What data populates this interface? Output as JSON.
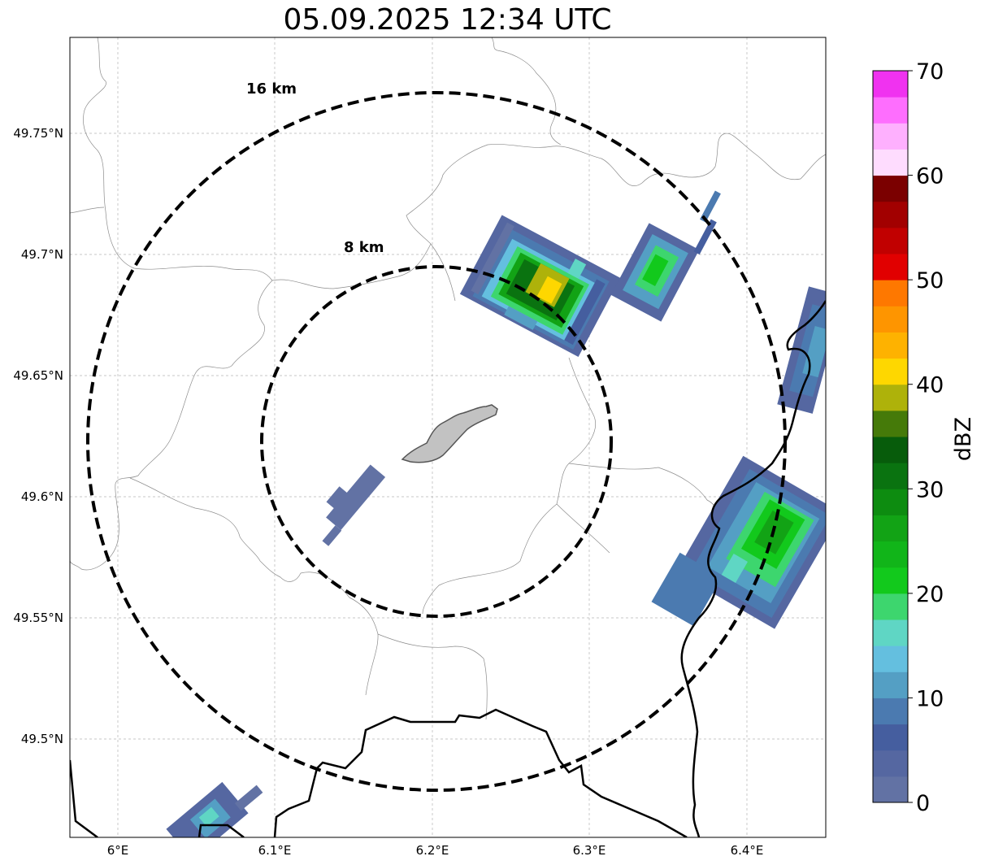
{
  "title": "05.09.2025 12:34 UTC",
  "map": {
    "x_ticks": [
      "6°E",
      "6.1°E",
      "6.2°E",
      "6.3°E",
      "6.4°E"
    ],
    "y_ticks": [
      "49.75°N",
      "49.7°N",
      "49.65°N",
      "49.6°N",
      "49.55°N",
      "49.5°N"
    ],
    "range_rings": [
      {
        "label": "16 km",
        "radius_km": 16
      },
      {
        "label": "8 km",
        "radius_km": 8
      }
    ],
    "gridlines": true
  },
  "colorbar": {
    "label": "dBZ",
    "ticks": [
      "0",
      "10",
      "20",
      "30",
      "40",
      "50",
      "60",
      "70"
    ],
    "range": [
      0,
      70
    ],
    "step": 2.5,
    "colors": [
      "#6272a4",
      "#5567a1",
      "#455e9f",
      "#4b7ab0",
      "#549fc4",
      "#64bfdf",
      "#5fd6c4",
      "#3dd66e",
      "#12c91c",
      "#11b519",
      "#12a315",
      "#0d8c10",
      "#0a7310",
      "#075c0b",
      "#457a09",
      "#aeb20a",
      "#fed700",
      "#feb200",
      "#fe9500",
      "#fe7800",
      "#e10000",
      "#c10000",
      "#a20000",
      "#7b0000",
      "#fedcfe",
      "#feb0fe",
      "#fe6efe",
      "#f032f0"
    ]
  }
}
